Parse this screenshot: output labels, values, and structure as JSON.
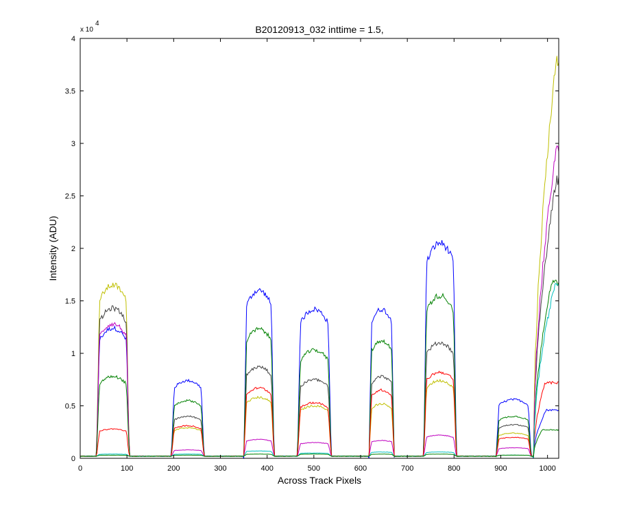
{
  "chart_data": {
    "type": "line",
    "title": "B20120913_032 inttime = 1.5,",
    "xlabel": "Across Track Pixels",
    "ylabel": "Intensity (ADU)",
    "y_exponent_label": "x 10",
    "y_exponent_power": "4",
    "xlim": [
      0,
      1024
    ],
    "ylim": [
      0,
      4
    ],
    "y_scale_factor": 10000,
    "x_ticks": [
      0,
      100,
      200,
      300,
      400,
      500,
      600,
      700,
      800,
      900,
      1000
    ],
    "x_tick_labels": [
      "0",
      "100",
      "200",
      "300",
      "400",
      "500",
      "600",
      "700",
      "800",
      "900",
      "1000"
    ],
    "y_ticks": [
      0,
      0.5,
      1,
      1.5,
      2,
      2.5,
      3,
      3.5,
      4
    ],
    "y_tick_labels": [
      "0",
      "0.5",
      "1",
      "1.5",
      "2",
      "2.5",
      "3",
      "3.5",
      "4"
    ],
    "grid": false,
    "legend": "none",
    "baseline": 0.02,
    "segments": [
      {
        "x0": 35,
        "x1": 105
      },
      {
        "x0": 195,
        "x1": 265
      },
      {
        "x0": 350,
        "x1": 415
      },
      {
        "x0": 465,
        "x1": 537
      },
      {
        "x0": 618,
        "x1": 672
      },
      {
        "x0": 735,
        "x1": 805
      },
      {
        "x0": 890,
        "x1": 965
      },
      {
        "x0": 970,
        "x1": 1024
      }
    ],
    "series": [
      {
        "color": "#0000ff",
        "levels": [
          1.24,
          0.74,
          1.6,
          1.42,
          1.42,
          2.05,
          0.56,
          0.46
        ],
        "rise": 0.5
      },
      {
        "color": "#bfbf00",
        "levels": [
          1.65,
          0.29,
          0.58,
          0.5,
          0.52,
          0.74,
          0.24,
          3.8
        ],
        "rise": 0.9
      },
      {
        "color": "#404040",
        "levels": [
          1.43,
          0.4,
          0.87,
          0.75,
          0.78,
          1.1,
          0.32,
          2.65
        ],
        "rise": 0.9
      },
      {
        "color": "#bf00bf",
        "levels": [
          1.28,
          0.08,
          0.18,
          0.15,
          0.17,
          0.22,
          0.1,
          2.95
        ],
        "rise": 0.9
      },
      {
        "color": "#008000",
        "levels": [
          0.78,
          0.55,
          1.23,
          1.03,
          1.12,
          1.55,
          0.4,
          1.67
        ],
        "rise": 0.7
      },
      {
        "color": "#ff0000",
        "levels": [
          0.28,
          0.31,
          0.67,
          0.53,
          0.65,
          0.82,
          0.2,
          0.72
        ],
        "rise": 0.45
      },
      {
        "color": "#00bfbf",
        "levels": [
          0.04,
          0.04,
          0.07,
          0.05,
          0.06,
          0.06,
          0.03,
          1.66
        ],
        "rise": 0.85
      },
      {
        "color": "#008000",
        "levels": [
          0.03,
          0.03,
          0.04,
          0.04,
          0.04,
          0.04,
          0.03,
          0.27
        ],
        "rise": 0.35
      }
    ]
  }
}
